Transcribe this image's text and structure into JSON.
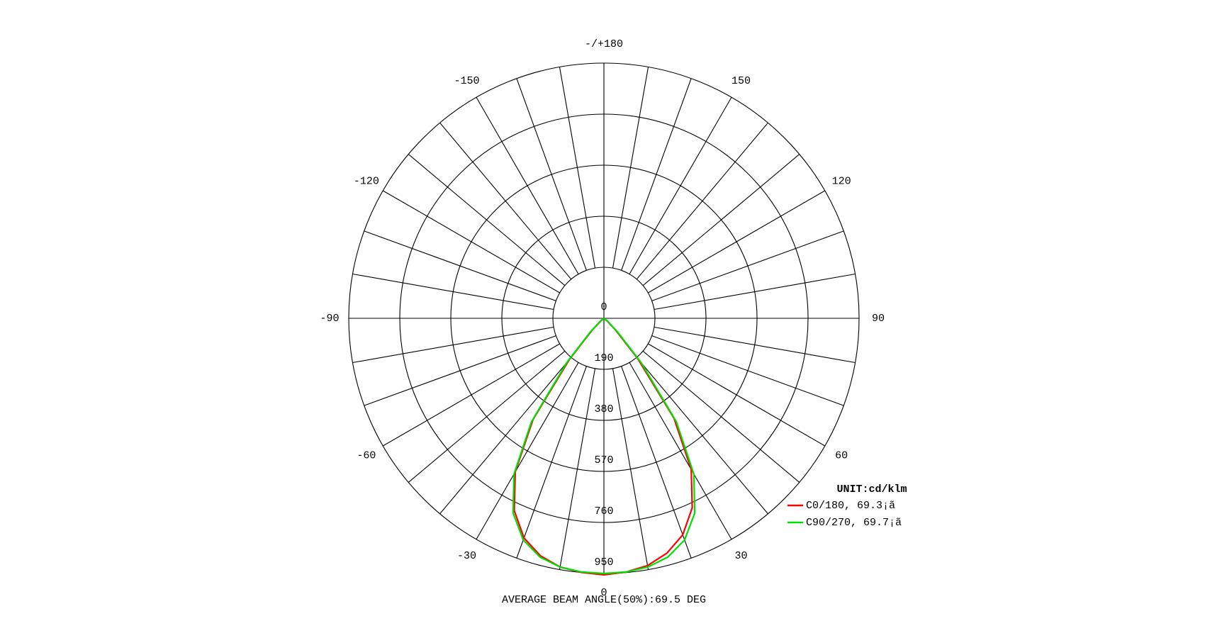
{
  "chart_data": {
    "type": "polar",
    "theta": [
      -90,
      -85,
      -80,
      -75,
      -70,
      -65,
      -60,
      -55,
      -50,
      -45,
      -40,
      -35,
      -30,
      -25,
      -20,
      -15,
      -10,
      -5,
      0,
      5,
      10,
      15,
      20,
      25,
      30,
      35,
      40,
      45,
      50,
      55,
      60,
      65,
      70,
      75,
      80,
      85,
      90
    ],
    "series": [
      {
        "name": "C0/180, 69.3¡ã",
        "color": "#ff0000",
        "values": [
          0,
          0,
          0,
          0,
          0,
          0,
          0,
          4,
          15,
          60,
          200,
          460,
          660,
          790,
          870,
          915,
          940,
          950,
          955,
          948,
          935,
          905,
          858,
          778,
          650,
          455,
          195,
          58,
          14,
          4,
          0,
          0,
          0,
          0,
          0,
          0,
          0
        ]
      },
      {
        "name": "C90/270, 69.7¡ã",
        "color": "#00e000",
        "values": [
          0,
          0,
          0,
          0,
          0,
          0,
          0,
          5,
          20,
          70,
          215,
          470,
          670,
          800,
          878,
          920,
          940,
          948,
          950,
          948,
          940,
          920,
          878,
          800,
          670,
          470,
          215,
          70,
          20,
          5,
          0,
          0,
          0,
          0,
          0,
          0,
          0
        ]
      }
    ],
    "rlim": [
      0,
      950
    ],
    "rticks": [
      0,
      190,
      380,
      570,
      760,
      950
    ],
    "thetaticks": [
      {
        "value": 180,
        "label": "-/+180"
      },
      -150,
      150,
      -120,
      120,
      -90,
      90,
      -60,
      60,
      -30,
      30,
      0
    ],
    "thetagrid": [
      -170,
      -160,
      -150,
      -140,
      -130,
      -120,
      -110,
      -100,
      -90,
      -80,
      -70,
      -60,
      -50,
      -40,
      -30,
      -20,
      -10,
      0,
      10,
      20,
      30,
      40,
      50,
      60,
      70,
      80,
      90,
      100,
      110,
      120,
      130,
      140,
      150,
      160,
      170,
      180
    ],
    "unit": "UNIT:cd/klm",
    "footer": "AVERAGE BEAM ANGLE(50%):69.5 DEG"
  }
}
